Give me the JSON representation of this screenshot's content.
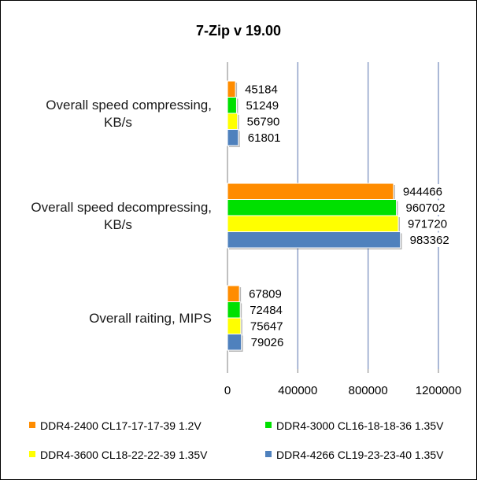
{
  "chart_data": {
    "type": "bar",
    "orientation": "horizontal",
    "title": "7-Zip v 19.00",
    "categories": [
      [
        "Overall speed compressing,",
        "KB/s"
      ],
      [
        "Overall speed  decompressing,",
        "KB/s"
      ],
      [
        "Overall raiting, MIPS"
      ]
    ],
    "series": [
      {
        "name": "DDR4-2400 CL17-17-17-39 1.2V",
        "color": "#ff8c00",
        "values": [
          45184,
          944466,
          67809
        ]
      },
      {
        "name": "DDR4-3000 CL16-18-18-36 1.35V",
        "color": "#00e000",
        "values": [
          51249,
          960702,
          72484
        ]
      },
      {
        "name": "DDR4-3600 CL18-22-22-39 1.35V",
        "color": "#ffff00",
        "values": [
          56790,
          971720,
          75647
        ]
      },
      {
        "name": "DDR4-4266 CL19-23-23-40 1.35V",
        "color": "#4f81bd",
        "values": [
          61801,
          983362,
          79026
        ]
      }
    ],
    "xlim": [
      0,
      1200000
    ],
    "xticks": [
      0,
      400000,
      800000,
      1200000
    ],
    "xtick_labels": [
      "0",
      "400000",
      "800000",
      "1200000"
    ],
    "grid": true,
    "legend_position": "bottom"
  }
}
